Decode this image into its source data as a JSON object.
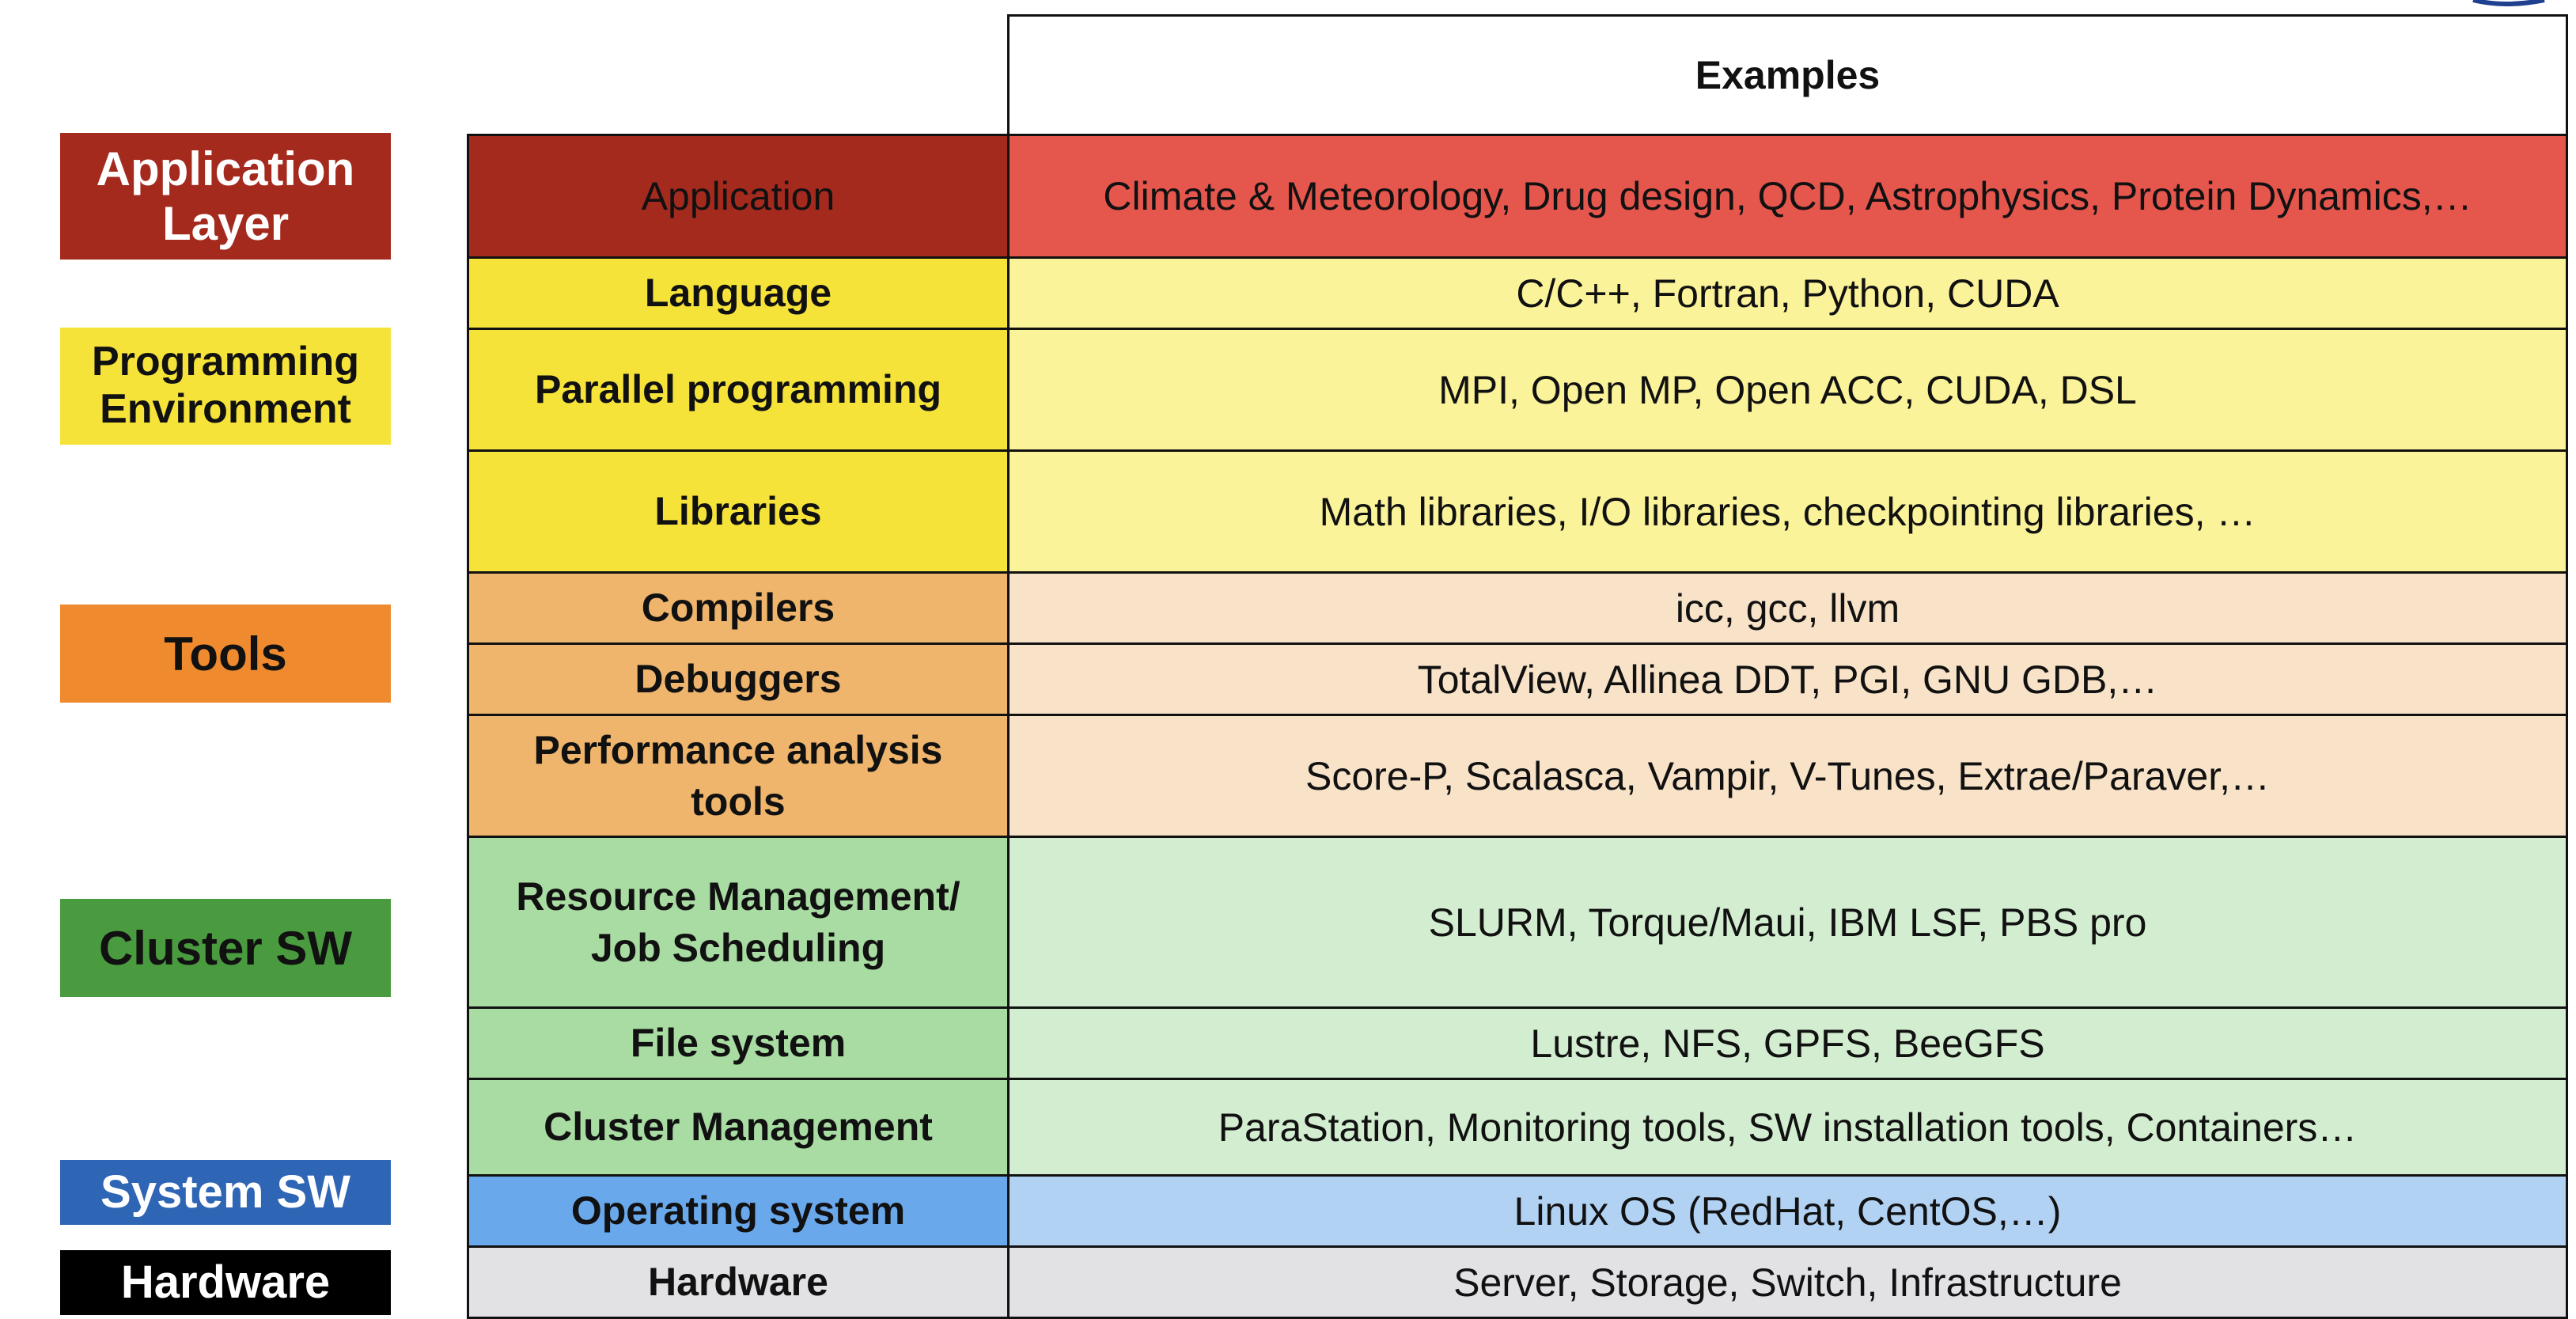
{
  "header": {
    "examples_label": "Examples"
  },
  "layers": [
    {
      "id": "application",
      "lines": [
        "Application",
        "Layer"
      ],
      "color": "#a52a1e",
      "text_color": "#ffffff"
    },
    {
      "id": "programming",
      "lines": [
        "Programming",
        "Environment"
      ],
      "color": "#f6e33a",
      "text_color": "#111111"
    },
    {
      "id": "tools",
      "lines": [
        "Tools"
      ],
      "color": "#ef8a2e",
      "text_color": "#111111"
    },
    {
      "id": "cluster",
      "lines": [
        "Cluster SW"
      ],
      "color": "#4a9b3f",
      "text_color": "#111111"
    },
    {
      "id": "system",
      "lines": [
        "System SW"
      ],
      "color": "#2f65b5",
      "text_color": "#ffffff"
    },
    {
      "id": "hardware",
      "lines": [
        "Hardware"
      ],
      "color": "#000000",
      "text_color": "#ffffff"
    }
  ],
  "rows": [
    {
      "category": [
        "Application"
      ],
      "examples": "Climate & Meteorology, Drug design, QCD, Astrophysics, Protein Dynamics,…",
      "cat_bg": "#a52a1e",
      "ex_bg": "#e5564d",
      "bold": false
    },
    {
      "category": [
        "Language"
      ],
      "examples": "C/C++, Fortran, Python, CUDA",
      "cat_bg": "#f6e33a",
      "ex_bg": "#fbf39a",
      "bold": true
    },
    {
      "category": [
        "Parallel programming"
      ],
      "examples": "MPI, Open MP, Open ACC, CUDA, DSL",
      "cat_bg": "#f6e33a",
      "ex_bg": "#fbf39a",
      "bold": true
    },
    {
      "category": [
        "Libraries"
      ],
      "examples": "Math libraries, I/O libraries, checkpointing libraries, …",
      "cat_bg": "#f6e33a",
      "ex_bg": "#fbf39a",
      "bold": true
    },
    {
      "category": [
        "Compilers"
      ],
      "examples": "icc, gcc, llvm",
      "cat_bg": "#efb56c",
      "ex_bg": "#f8e2c8",
      "bold": true
    },
    {
      "category": [
        "Debuggers"
      ],
      "examples": "TotalView, Allinea DDT, PGI, GNU GDB,…",
      "cat_bg": "#efb56c",
      "ex_bg": "#f8e2c8",
      "bold": true
    },
    {
      "category": [
        "Performance analysis",
        "tools"
      ],
      "examples": "Score-P, Scalasca, Vampir, V-Tunes, Extrae/Paraver,…",
      "cat_bg": "#efb56c",
      "ex_bg": "#f8e2c8",
      "bold": true
    },
    {
      "category": [
        "Resource Management/",
        "Job Scheduling"
      ],
      "examples": "SLURM, Torque/Maui, IBM LSF, PBS pro",
      "cat_bg": "#a8dca2",
      "ex_bg": "#d3edd0",
      "bold": true
    },
    {
      "category": [
        "File system"
      ],
      "examples": "Lustre, NFS, GPFS, BeeGFS",
      "cat_bg": "#a8dca2",
      "ex_bg": "#d3edd0",
      "bold": true
    },
    {
      "category": [
        "Cluster Management"
      ],
      "examples": "ParaStation, Monitoring tools, SW installation tools, Containers…",
      "cat_bg": "#a8dca2",
      "ex_bg": "#d3edd0",
      "bold": true
    },
    {
      "category": [
        "Operating system"
      ],
      "examples": "Linux OS (RedHat, CentOS,…)",
      "cat_bg": "#6aa8ec",
      "ex_bg": "#b2d2f4",
      "bold": true
    },
    {
      "category": [
        "Hardware"
      ],
      "examples": "Server, Storage, Switch, Infrastructure",
      "cat_bg": "#e2e2e5",
      "ex_bg": "#e2e2e5",
      "bold": true
    }
  ]
}
